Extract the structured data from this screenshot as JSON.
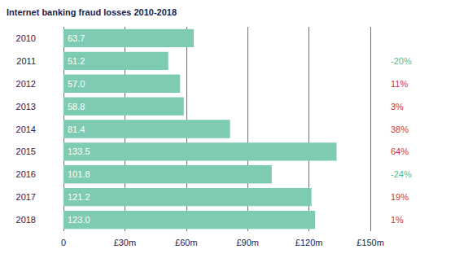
{
  "chart_data": {
    "type": "bar",
    "title": "Internet banking fraud losses 2010-2018",
    "orientation": "horizontal",
    "categories": [
      "2010",
      "2011",
      "2012",
      "2013",
      "2014",
      "2015",
      "2016",
      "2017",
      "2018"
    ],
    "values": [
      63.7,
      51.2,
      57.0,
      58.8,
      81.4,
      133.5,
      101.8,
      121.2,
      123.0
    ],
    "value_labels": [
      "63.7",
      "51.2",
      "57.0",
      "58.8",
      "81.4",
      "133.5",
      "101.8",
      "121.2",
      "123.0"
    ],
    "data_labels": true,
    "color": "#7ccbb2",
    "xlim": [
      0,
      150
    ],
    "xticks": [
      0,
      {
        "value": 30,
        "label": "£30m"
      },
      {
        "value": 60,
        "label": "£60m"
      },
      {
        "value": 90,
        "label": "£90m"
      },
      {
        "value": 120,
        "label": "£120m"
      },
      {
        "value": 150,
        "label": "£150m"
      }
    ],
    "grid": true,
    "annotations": {
      "values": [
        null,
        -20,
        11,
        3,
        38,
        64,
        -24,
        19,
        1
      ],
      "value_labels": [
        null,
        "-20%",
        "11%",
        "3%",
        "38%",
        "64%",
        "-24%",
        "19%",
        "1%"
      ],
      "colors": [
        null,
        "#4dbd98",
        "#c8344f",
        "#c8344f",
        "#c8344f",
        "#c8344f",
        "#4dbd98",
        "#c8344f",
        "#c8344f"
      ]
    }
  }
}
